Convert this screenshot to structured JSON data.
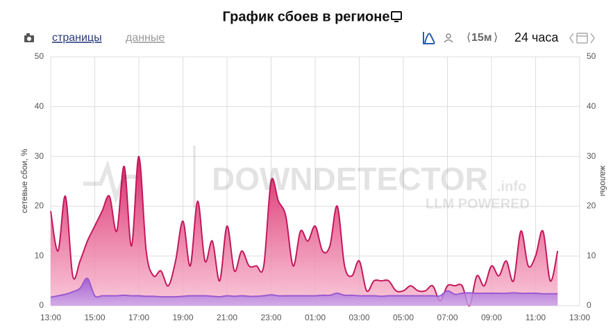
{
  "chart_data": {
    "type": "area",
    "title": "График сбоев в регионе",
    "ylabel": "сетевые сбои, %",
    "y2label": "жалобы",
    "categories": [
      "13:00",
      null,
      null,
      null,
      null,
      null,
      "15:00",
      null,
      null,
      null,
      null,
      null,
      "17:00",
      null,
      null,
      null,
      null,
      null,
      "19:00",
      null,
      null,
      null,
      null,
      null,
      "21:00",
      null,
      null,
      null,
      null,
      null,
      "23:00",
      null,
      null,
      null,
      null,
      null,
      "01:00",
      null,
      null,
      null,
      null,
      null,
      "03:00",
      null,
      null,
      null,
      null,
      null,
      "05:00",
      null,
      null,
      null,
      null,
      null,
      "07:00",
      null,
      null,
      null,
      null,
      null,
      "09:00",
      null,
      null,
      null,
      null,
      null,
      "11:00",
      null,
      null,
      null,
      null,
      null,
      "13:00"
    ],
    "series": [
      {
        "color": "#c2185b",
        "values": [
          19,
          11,
          22,
          6,
          9,
          13,
          16,
          19,
          22,
          15,
          28,
          12,
          30,
          11,
          6,
          7,
          4,
          9,
          17,
          8,
          21,
          9,
          13,
          5,
          16,
          7,
          11,
          8,
          8,
          8,
          25,
          21,
          18,
          8,
          15,
          13,
          16,
          11,
          12,
          20,
          8,
          6,
          9,
          3,
          5,
          5,
          5,
          3,
          3,
          4,
          3,
          3,
          4,
          1,
          4,
          4,
          4,
          0,
          6,
          4,
          8,
          6,
          9,
          5,
          15,
          8,
          10,
          15,
          5,
          11,
          null,
          null,
          null
        ]
      },
      {
        "color": "#9b59d0",
        "values": [
          1.7,
          2,
          2.3,
          2.8,
          3.5,
          5.5,
          2,
          2,
          2,
          2,
          2.1,
          2,
          2,
          1.9,
          1.9,
          1.8,
          1.8,
          1.8,
          1.9,
          2,
          2,
          2,
          1.9,
          1.8,
          2,
          1.9,
          2,
          1.9,
          1.9,
          2,
          2.2,
          2,
          2,
          2,
          2,
          2,
          2,
          2.1,
          2.1,
          2.5,
          2.1,
          2.1,
          2,
          2,
          2,
          1.9,
          2,
          2,
          2,
          2,
          2,
          2,
          2,
          2,
          3,
          2.3,
          2.5,
          2.6,
          2.5,
          2.5,
          2.5,
          2.5,
          2.5,
          2.6,
          2.5,
          2.5,
          2.5,
          2.4,
          2.4,
          2.4,
          null,
          null,
          null
        ]
      }
    ],
    "ylim": [
      0,
      50
    ],
    "yticks": [
      0,
      10,
      20,
      30,
      40,
      50
    ],
    "y2lim": [
      0,
      50
    ],
    "y2ticks": [
      0,
      10,
      20,
      30,
      40,
      50
    ],
    "grid": true
  },
  "toolbar": {
    "pages": "страницы",
    "data": "данные",
    "interval": "15м",
    "range": "24 часа"
  },
  "watermark": {
    "brand": "DOWNDETECTOR",
    "suffix": ".info",
    "tagline": "LLM POWERED"
  }
}
